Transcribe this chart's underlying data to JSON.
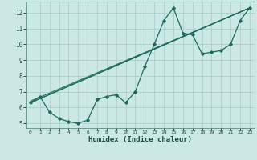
{
  "title": "",
  "xlabel": "Humidex (Indice chaleur)",
  "bg_color": "#cce8e4",
  "grid_color": "#aacfca",
  "line_color": "#1a6b5a",
  "xlim": [
    -0.5,
    23.5
  ],
  "ylim": [
    4.7,
    12.7
  ],
  "yticks": [
    5,
    6,
    7,
    8,
    9,
    10,
    11,
    12
  ],
  "xticks": [
    0,
    1,
    2,
    3,
    4,
    5,
    6,
    7,
    8,
    9,
    10,
    11,
    12,
    13,
    14,
    15,
    16,
    17,
    18,
    19,
    20,
    21,
    22,
    23
  ],
  "series": [
    [
      0,
      6.3
    ],
    [
      1,
      6.7
    ],
    [
      2,
      5.7
    ],
    [
      3,
      5.3
    ],
    [
      4,
      5.1
    ],
    [
      5,
      5.0
    ],
    [
      6,
      5.2
    ],
    [
      7,
      6.5
    ],
    [
      8,
      6.7
    ],
    [
      9,
      6.8
    ],
    [
      10,
      6.3
    ],
    [
      11,
      7.0
    ],
    [
      12,
      8.6
    ],
    [
      13,
      10.0
    ],
    [
      14,
      11.5
    ],
    [
      15,
      12.3
    ],
    [
      16,
      10.7
    ],
    [
      17,
      10.6
    ],
    [
      18,
      9.4
    ],
    [
      19,
      9.5
    ],
    [
      20,
      9.6
    ],
    [
      21,
      10.0
    ],
    [
      22,
      11.5
    ],
    [
      23,
      12.3
    ]
  ],
  "line2": [
    [
      0,
      6.3
    ],
    [
      23,
      12.3
    ]
  ],
  "line3": [
    [
      0,
      6.3
    ],
    [
      23,
      12.3
    ]
  ],
  "line4": [
    [
      0,
      6.4
    ],
    [
      23,
      12.3
    ]
  ],
  "line5": [
    [
      0,
      6.3
    ],
    [
      23,
      12.3
    ]
  ]
}
